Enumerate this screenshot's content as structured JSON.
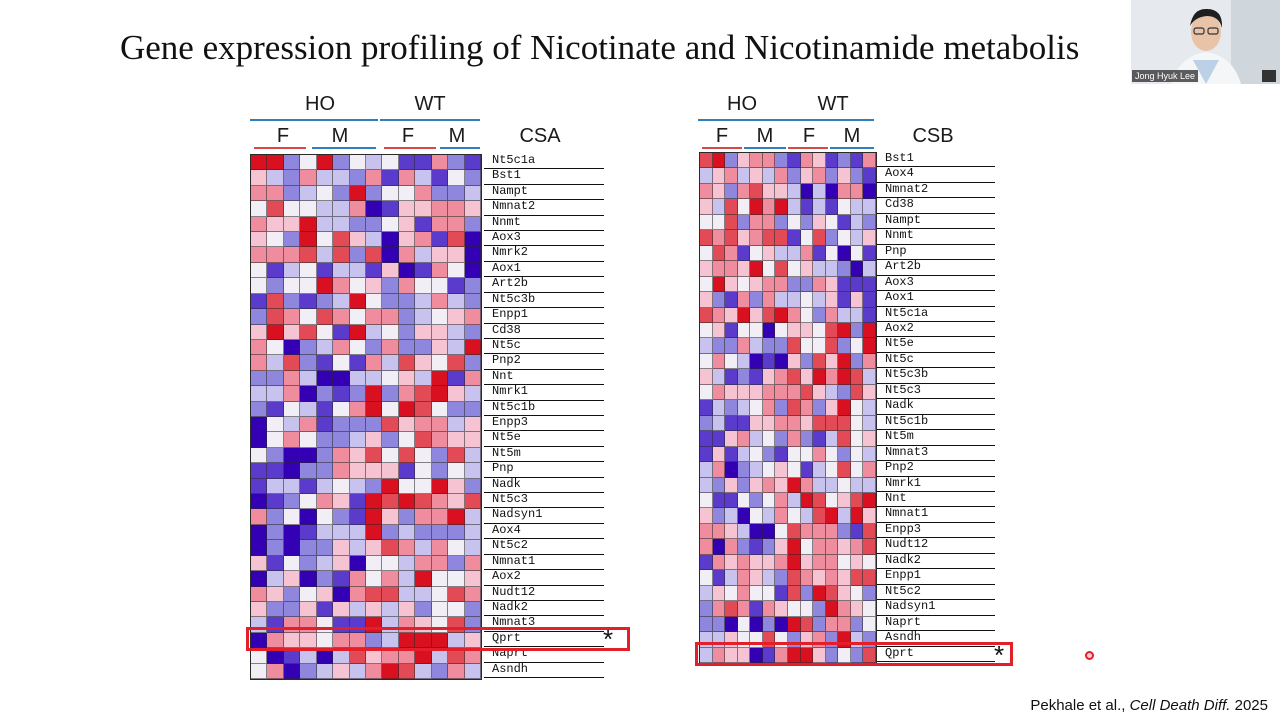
{
  "slide": {
    "title": "Gene expression profiling of Nicotinate and Nicotinamide metabolis"
  },
  "colors": {
    "ho_line": "#2f7fbf",
    "female_line": "#d94848",
    "male_line": "#2f7fbf",
    "highlight": "#e3202a",
    "heat_low": "#3300b3",
    "heat_mid": "#f2eef5",
    "heat_high": "#d91020"
  },
  "panels": [
    {
      "label": "CSA",
      "group_labels": [
        "HO",
        "WT"
      ],
      "sex_labels": [
        "F",
        "M",
        "F",
        "M"
      ],
      "genes": [
        "Nt5c1a",
        "Bst1",
        "Nampt",
        "Nmnat2",
        "Nnmt",
        "Aox3",
        "Nmrk2",
        "Aox1",
        "Art2b",
        "Nt5c3b",
        "Enpp1",
        "Cd38",
        "Nt5c",
        "Pnp2",
        "Nnt",
        "Nmrk1",
        "Nt5c1b",
        "Enpp3",
        "Nt5e",
        "Nt5m",
        "Pnp",
        "Nadk",
        "Nt5c3",
        "Nadsyn1",
        "Aox4",
        "Nt5c2",
        "Nmnat1",
        "Aox2",
        "Nudt12",
        "Nadk2",
        "Nmnat3",
        "Qprt",
        "Naprt",
        "Asndh"
      ],
      "highlight_gene": "Qprt",
      "highlight_mark": "*"
    },
    {
      "label": "CSB",
      "group_labels": [
        "HO",
        "WT"
      ],
      "sex_labels": [
        "F",
        "M",
        "F",
        "M"
      ],
      "genes": [
        "Bst1",
        "Aox4",
        "Nmnat2",
        "Cd38",
        "Nampt",
        "Nnmt",
        "Pnp",
        "Art2b",
        "Aox3",
        "Aox1",
        "Nt5c1a",
        "Aox2",
        "Nt5e",
        "Nt5c",
        "Nt5c3b",
        "Nt5c3",
        "Nadk",
        "Nt5c1b",
        "Nt5m",
        "Nmnat3",
        "Pnp2",
        "Nmrk1",
        "Nnt",
        "Nmnat1",
        "Enpp3",
        "Nudt12",
        "Nadk2",
        "Enpp1",
        "Nt5c2",
        "Nadsyn1",
        "Naprt",
        "Asndh",
        "Qprt"
      ],
      "highlight_gene": "Qprt",
      "highlight_mark": "*"
    }
  ],
  "webcam": {
    "name": "Jong Hyuk Lee"
  },
  "citation": {
    "authors": "Pekhale et al., ",
    "journal": "Cell Death Diff.",
    "year": " 2025"
  }
}
